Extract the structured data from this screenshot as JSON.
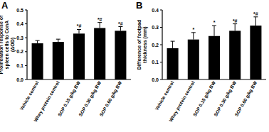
{
  "chart_data": [
    {
      "type": "bar",
      "title": "A",
      "y_label": "Proliferation response of spleen cells to ConA (ΔOD)",
      "categories": [
        "Vehicle control",
        "Whey protein control",
        "SOP 0.15 g/kg BW",
        "SOP 0.30 g/kg BW",
        "SOP 0.60 g/kg BW"
      ],
      "values": [
        0.26,
        0.27,
        0.33,
        0.37,
        0.35
      ],
      "errors": [
        0.02,
        0.02,
        0.03,
        0.04,
        0.03
      ],
      "annotations": [
        null,
        null,
        "*#",
        "*#",
        "*#"
      ],
      "color": "#000000",
      "ylim": [
        0,
        0.5
      ],
      "yticks": [
        {
          "value": 0,
          "label": "0.0"
        },
        0.1,
        0.2,
        0.3,
        0.4,
        0.5
      ]
    },
    {
      "type": "bar",
      "title": "B",
      "y_label": "Difference of footpad thickness (mm)",
      "categories": [
        "Vehicle control",
        "Whey protein control",
        "SOP 0.15 g/kg BW",
        "SOP 0.30 g/kg BW",
        "SOP 0.60 g/kg BW"
      ],
      "values": [
        0.18,
        0.23,
        0.25,
        0.28,
        0.31
      ],
      "errors": [
        0.04,
        0.04,
        0.06,
        0.04,
        0.05
      ],
      "annotations": [
        null,
        "*",
        "*",
        "*#",
        "*#"
      ],
      "color": "#000000",
      "ylim": [
        0,
        0.4
      ],
      "yticks": [
        {
          "value": 0,
          "label": "0.0"
        },
        0.1,
        0.2,
        0.3,
        0.4
      ]
    }
  ]
}
